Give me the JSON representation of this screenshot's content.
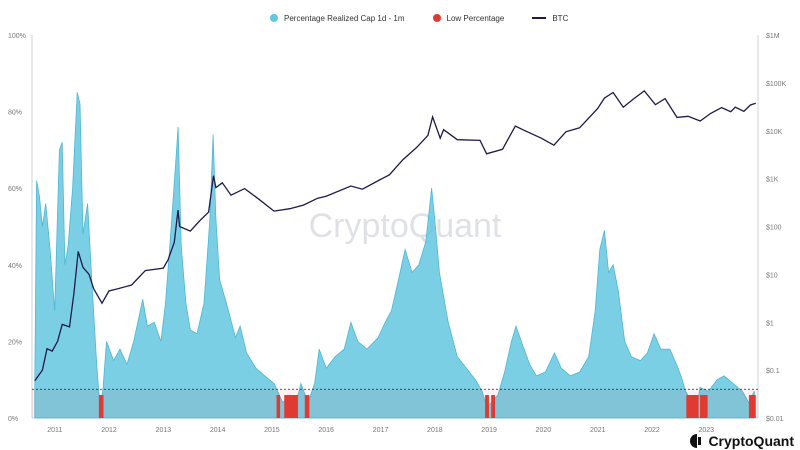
{
  "brand": {
    "watermark": "CryptoQuant",
    "logo_text": "CryptoQuant"
  },
  "legend": {
    "items": [
      {
        "label": "Percentage Realized Cap 1d - 1m",
        "color": "#63c7e0",
        "kind": "dot"
      },
      {
        "label": "Low Percentage",
        "color": "#e03b33",
        "kind": "dot"
      },
      {
        "label": "BTC",
        "color": "#1e1a4a",
        "kind": "line"
      }
    ]
  },
  "chart_data": {
    "type": "area",
    "xlim": [
      "2010-08-01",
      "2023-12-15"
    ],
    "x_ticks": [
      "2011",
      "2012",
      "2013",
      "2014",
      "2015",
      "2016",
      "2017",
      "2018",
      "2019",
      "2020",
      "2021",
      "2022",
      "2023"
    ],
    "y_left": {
      "ticks": [
        "0%",
        "20%",
        "40%",
        "60%",
        "80%",
        "100%"
      ],
      "range": [
        0,
        100
      ]
    },
    "y_right": {
      "ticks": [
        "$0.01",
        "$0.1",
        "$1",
        "$10",
        "$100",
        "$1K",
        "$10K",
        "$100K",
        "$1M"
      ],
      "scale": "log",
      "range": [
        0.01,
        1000000
      ]
    },
    "threshold": 7.5,
    "grid": false,
    "series": [
      {
        "name": "Percentage Realized Cap 1d - 1m",
        "axis": "left",
        "color": "#63c7e0",
        "points": [
          [
            "2010-08-20",
            9
          ],
          [
            "2010-09-01",
            62
          ],
          [
            "2010-09-20",
            58
          ],
          [
            "2010-10-10",
            50
          ],
          [
            "2010-11-01",
            56
          ],
          [
            "2010-12-01",
            44
          ],
          [
            "2011-01-01",
            28
          ],
          [
            "2011-02-01",
            70
          ],
          [
            "2011-02-20",
            72
          ],
          [
            "2011-03-10",
            40
          ],
          [
            "2011-04-01",
            45
          ],
          [
            "2011-05-01",
            60
          ],
          [
            "2011-06-01",
            85
          ],
          [
            "2011-06-20",
            82
          ],
          [
            "2011-07-10",
            48
          ],
          [
            "2011-08-10",
            56
          ],
          [
            "2011-09-10",
            34
          ],
          [
            "2011-10-10",
            14
          ],
          [
            "2011-11-01",
            3
          ],
          [
            "2011-11-20",
            7
          ],
          [
            "2011-12-15",
            20
          ],
          [
            "2012-02-01",
            15
          ],
          [
            "2012-03-15",
            18
          ],
          [
            "2012-05-01",
            14
          ],
          [
            "2012-06-15",
            20
          ],
          [
            "2012-08-15",
            31
          ],
          [
            "2012-09-15",
            24
          ],
          [
            "2012-11-01",
            25
          ],
          [
            "2012-12-15",
            20
          ],
          [
            "2013-01-15",
            30
          ],
          [
            "2013-02-15",
            46
          ],
          [
            "2013-03-20",
            64
          ],
          [
            "2013-04-10",
            76
          ],
          [
            "2013-05-01",
            45
          ],
          [
            "2013-06-01",
            30
          ],
          [
            "2013-07-01",
            23
          ],
          [
            "2013-08-15",
            22
          ],
          [
            "2013-10-01",
            30
          ],
          [
            "2013-11-10",
            52
          ],
          [
            "2013-12-01",
            74
          ],
          [
            "2013-12-20",
            52
          ],
          [
            "2014-01-15",
            36
          ],
          [
            "2014-03-01",
            30
          ],
          [
            "2014-05-01",
            21
          ],
          [
            "2014-06-01",
            24
          ],
          [
            "2014-07-15",
            17
          ],
          [
            "2014-09-15",
            13
          ],
          [
            "2014-11-15",
            11
          ],
          [
            "2015-01-15",
            9
          ],
          [
            "2015-03-15",
            4
          ],
          [
            "2015-05-01",
            6
          ],
          [
            "2015-06-01",
            2
          ],
          [
            "2015-07-15",
            9
          ],
          [
            "2015-09-01",
            4
          ],
          [
            "2015-10-15",
            9
          ],
          [
            "2015-11-15",
            18
          ],
          [
            "2016-01-01",
            13
          ],
          [
            "2016-03-01",
            16
          ],
          [
            "2016-05-01",
            18
          ],
          [
            "2016-06-15",
            25
          ],
          [
            "2016-08-01",
            20
          ],
          [
            "2016-10-01",
            18
          ],
          [
            "2016-12-15",
            21
          ],
          [
            "2017-02-01",
            25
          ],
          [
            "2017-03-15",
            28
          ],
          [
            "2017-05-01",
            36
          ],
          [
            "2017-06-15",
            44
          ],
          [
            "2017-08-01",
            38
          ],
          [
            "2017-09-15",
            40
          ],
          [
            "2017-11-01",
            46
          ],
          [
            "2017-12-10",
            60
          ],
          [
            "2017-12-31",
            52
          ],
          [
            "2018-02-01",
            38
          ],
          [
            "2018-04-01",
            25
          ],
          [
            "2018-06-01",
            16
          ],
          [
            "2018-08-01",
            13
          ],
          [
            "2018-10-01",
            10
          ],
          [
            "2018-11-15",
            7
          ],
          [
            "2018-12-15",
            3
          ],
          [
            "2019-01-15",
            4
          ],
          [
            "2019-03-01",
            6
          ],
          [
            "2019-04-15",
            12
          ],
          [
            "2019-06-01",
            20
          ],
          [
            "2019-07-01",
            24
          ],
          [
            "2019-08-15",
            19
          ],
          [
            "2019-10-01",
            14
          ],
          [
            "2019-11-15",
            11
          ],
          [
            "2020-01-15",
            12
          ],
          [
            "2020-03-15",
            17
          ],
          [
            "2020-05-01",
            13
          ],
          [
            "2020-07-01",
            11
          ],
          [
            "2020-09-01",
            12
          ],
          [
            "2020-11-01",
            16
          ],
          [
            "2020-12-15",
            28
          ],
          [
            "2021-01-15",
            44
          ],
          [
            "2021-02-15",
            49
          ],
          [
            "2021-03-15",
            38
          ],
          [
            "2021-04-15",
            40
          ],
          [
            "2021-05-20",
            33
          ],
          [
            "2021-07-01",
            20
          ],
          [
            "2021-08-15",
            16
          ],
          [
            "2021-10-15",
            15
          ],
          [
            "2021-12-01",
            17
          ],
          [
            "2022-01-15",
            22
          ],
          [
            "2022-03-01",
            18
          ],
          [
            "2022-05-01",
            18
          ],
          [
            "2022-06-15",
            14
          ],
          [
            "2022-07-15",
            11
          ],
          [
            "2022-08-15",
            7
          ],
          [
            "2022-09-15",
            5
          ],
          [
            "2022-11-01",
            3
          ],
          [
            "2022-11-20",
            8
          ],
          [
            "2023-01-15",
            7
          ],
          [
            "2023-03-15",
            10
          ],
          [
            "2023-05-01",
            11
          ],
          [
            "2023-07-01",
            9
          ],
          [
            "2023-09-01",
            7
          ],
          [
            "2023-10-15",
            4
          ],
          [
            "2023-11-20",
            7
          ]
        ]
      },
      {
        "name": "Low Percentage",
        "axis": "left",
        "color": "#e03b33",
        "ranges": [
          [
            "2011-10-25",
            "2011-11-25",
            6
          ],
          [
            "2015-02-01",
            "2015-02-25",
            6
          ],
          [
            "2015-03-25",
            "2015-06-25",
            6
          ],
          [
            "2015-08-10",
            "2015-09-10",
            6
          ],
          [
            "2018-12-05",
            "2018-12-31",
            6
          ],
          [
            "2019-01-15",
            "2019-02-10",
            6
          ],
          [
            "2022-08-20",
            "2022-11-10",
            6
          ],
          [
            "2022-11-20",
            "2023-01-10",
            6
          ],
          [
            "2023-10-15",
            "2023-11-30",
            6
          ]
        ]
      },
      {
        "name": "BTC",
        "axis": "right",
        "color": "#1e1a4a",
        "points": [
          [
            "2010-08-20",
            0.06
          ],
          [
            "2010-10-10",
            0.1
          ],
          [
            "2010-11-10",
            0.28
          ],
          [
            "2010-12-15",
            0.25
          ],
          [
            "2011-01-20",
            0.4
          ],
          [
            "2011-02-20",
            0.9
          ],
          [
            "2011-04-10",
            0.8
          ],
          [
            "2011-05-10",
            4
          ],
          [
            "2011-06-08",
            30
          ],
          [
            "2011-07-10",
            14
          ],
          [
            "2011-08-20",
            10
          ],
          [
            "2011-09-20",
            5
          ],
          [
            "2011-11-15",
            2.5
          ],
          [
            "2011-12-31",
            4.5
          ],
          [
            "2012-03-01",
            5
          ],
          [
            "2012-06-01",
            6
          ],
          [
            "2012-09-01",
            12
          ],
          [
            "2012-12-31",
            13.5
          ],
          [
            "2013-02-01",
            20
          ],
          [
            "2013-03-15",
            47
          ],
          [
            "2013-04-09",
            220
          ],
          [
            "2013-04-20",
            100
          ],
          [
            "2013-07-01",
            80
          ],
          [
            "2013-09-01",
            130
          ],
          [
            "2013-11-01",
            200
          ],
          [
            "2013-12-04",
            1150
          ],
          [
            "2013-12-20",
            650
          ],
          [
            "2014-02-01",
            820
          ],
          [
            "2014-04-01",
            450
          ],
          [
            "2014-07-01",
            620
          ],
          [
            "2014-10-01",
            380
          ],
          [
            "2015-01-15",
            210
          ],
          [
            "2015-05-01",
            235
          ],
          [
            "2015-08-01",
            280
          ],
          [
            "2015-11-05",
            390
          ],
          [
            "2016-01-01",
            430
          ],
          [
            "2016-06-15",
            700
          ],
          [
            "2016-09-01",
            600
          ],
          [
            "2016-12-31",
            960
          ],
          [
            "2017-03-01",
            1200
          ],
          [
            "2017-06-01",
            2500
          ],
          [
            "2017-09-01",
            4500
          ],
          [
            "2017-11-15",
            8000
          ],
          [
            "2017-12-17",
            19500
          ],
          [
            "2018-02-06",
            7000
          ],
          [
            "2018-03-01",
            10500
          ],
          [
            "2018-06-01",
            6500
          ],
          [
            "2018-11-01",
            6300
          ],
          [
            "2018-12-15",
            3300
          ],
          [
            "2019-04-01",
            4100
          ],
          [
            "2019-06-26",
            12500
          ],
          [
            "2019-09-01",
            10000
          ],
          [
            "2019-12-15",
            7100
          ],
          [
            "2020-03-12",
            5000
          ],
          [
            "2020-06-01",
            9500
          ],
          [
            "2020-09-01",
            11500
          ],
          [
            "2020-12-31",
            29000
          ],
          [
            "2021-02-15",
            48000
          ],
          [
            "2021-04-14",
            63000
          ],
          [
            "2021-06-22",
            31000
          ],
          [
            "2021-09-01",
            47000
          ],
          [
            "2021-11-10",
            68000
          ],
          [
            "2022-01-24",
            35000
          ],
          [
            "2022-03-30",
            47000
          ],
          [
            "2022-06-18",
            19000
          ],
          [
            "2022-09-01",
            20000
          ],
          [
            "2022-11-21",
            16000
          ],
          [
            "2023-01-31",
            23000
          ],
          [
            "2023-04-14",
            30500
          ],
          [
            "2023-06-15",
            25000
          ],
          [
            "2023-07-15",
            31000
          ],
          [
            "2023-09-11",
            25500
          ],
          [
            "2023-10-25",
            34500
          ],
          [
            "2023-11-30",
            37500
          ]
        ]
      }
    ]
  }
}
